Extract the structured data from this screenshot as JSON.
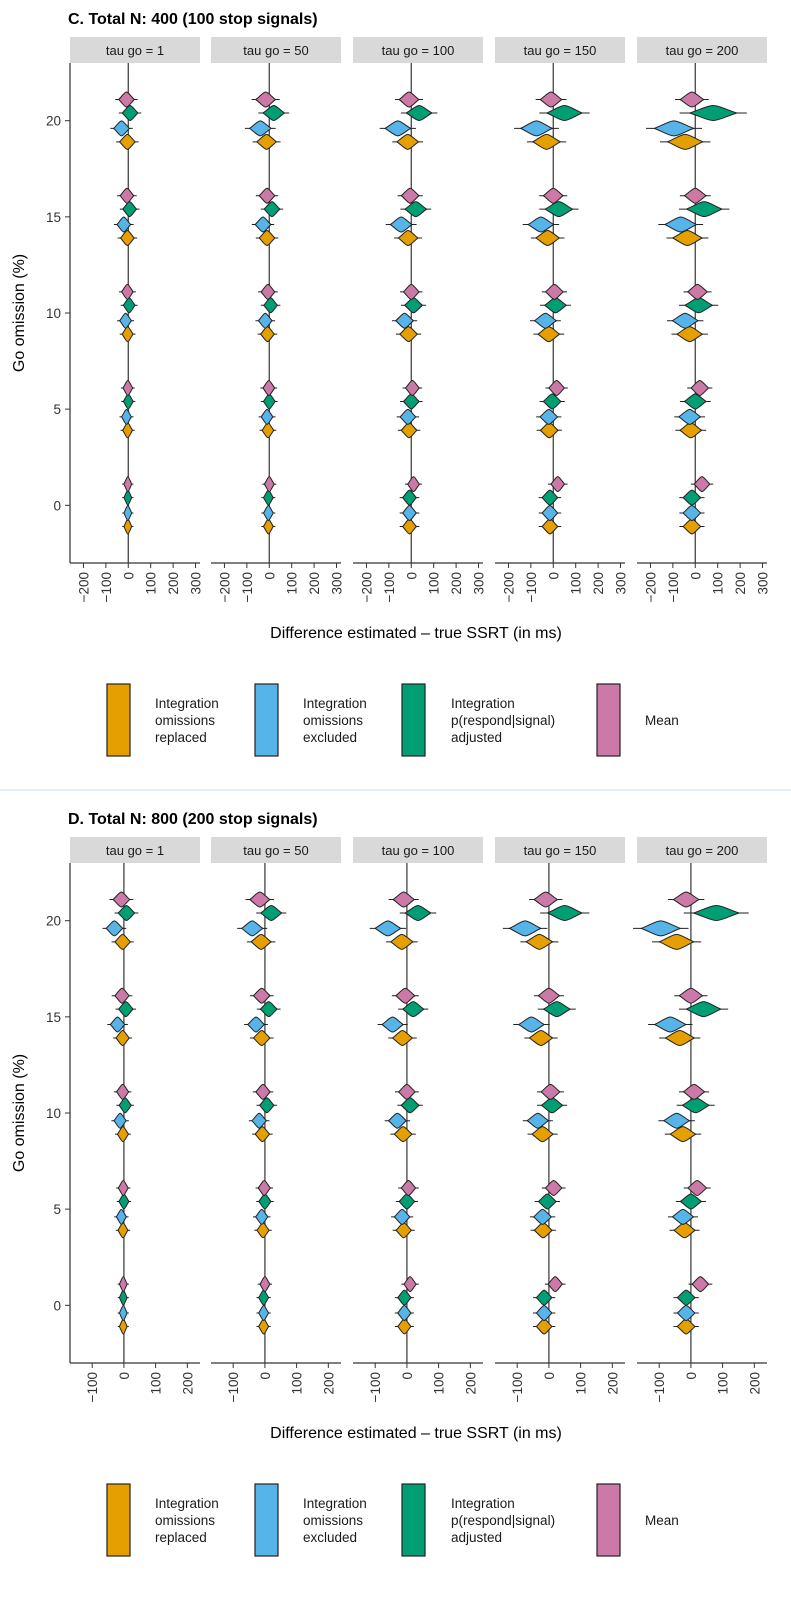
{
  "colors": {
    "replaced": "#E69F00",
    "excluded": "#56B4E9",
    "adjusted": "#009E73",
    "mean": "#CC79A7",
    "strip": "#d9d9d9"
  },
  "chart_data": [
    {
      "type": "violin",
      "title": "C. Total N: 400 (100 stop signals)",
      "xlabel": "Difference estimated – true SSRT (in ms)",
      "ylabel": "Go omission (%)",
      "facets": [
        "tau go = 1",
        "tau go = 50",
        "tau go = 100",
        "tau go = 150",
        "tau go = 200"
      ],
      "xlim": [
        -260,
        320
      ],
      "xticks": [
        -200,
        -100,
        0,
        100,
        200,
        300
      ],
      "xtick_labels": [
        "−200",
        "−100",
        "0",
        "100",
        "200",
        "300"
      ],
      "ylim": [
        -3,
        23
      ],
      "yticks": [
        0,
        5,
        10,
        15,
        20
      ],
      "ytick_labels": [
        "0",
        "5",
        "10",
        "15",
        "20"
      ],
      "go_omission_levels": [
        0,
        5,
        10,
        15,
        20
      ],
      "methods": [
        "Integration omissions replaced",
        "Integration omissions excluded",
        "Integration p(respond|signal) adjusted",
        "Mean"
      ],
      "method_order_bottom_to_top": [
        "replaced",
        "excluded",
        "adjusted",
        "mean"
      ],
      "series": [
        {
          "facet": "tau go = 1",
          "method": "replaced",
          "medians": [
            -2,
            -3,
            -3,
            -4,
            -4
          ],
          "spread": [
            20,
            25,
            28,
            35,
            40
          ]
        },
        {
          "facet": "tau go = 1",
          "method": "excluded",
          "medians": [
            -2,
            -8,
            -12,
            -20,
            -30
          ],
          "spread": [
            20,
            25,
            30,
            35,
            40
          ]
        },
        {
          "facet": "tau go = 1",
          "method": "adjusted",
          "medians": [
            -2,
            0,
            4,
            6,
            8
          ],
          "spread": [
            20,
            25,
            30,
            35,
            40
          ]
        },
        {
          "facet": "tau go = 1",
          "method": "mean",
          "medians": [
            -2,
            -2,
            -4,
            -6,
            -8
          ],
          "spread": [
            20,
            25,
            30,
            35,
            40
          ]
        },
        {
          "facet": "tau go = 50",
          "method": "replaced",
          "medians": [
            -4,
            -6,
            -8,
            -10,
            -12
          ],
          "spread": [
            25,
            30,
            35,
            40,
            50
          ]
        },
        {
          "facet": "tau go = 50",
          "method": "excluded",
          "medians": [
            -4,
            -10,
            -18,
            -28,
            -40
          ],
          "spread": [
            25,
            30,
            35,
            40,
            55
          ]
        },
        {
          "facet": "tau go = 50",
          "method": "adjusted",
          "medians": [
            -4,
            0,
            6,
            12,
            20
          ],
          "spread": [
            25,
            30,
            35,
            40,
            55
          ]
        },
        {
          "facet": "tau go = 50",
          "method": "mean",
          "medians": [
            0,
            -2,
            -6,
            -10,
            -16
          ],
          "spread": [
            25,
            30,
            35,
            40,
            50
          ]
        },
        {
          "facet": "tau go = 100",
          "method": "replaced",
          "medians": [
            -8,
            -10,
            -12,
            -14,
            -16
          ],
          "spread": [
            35,
            40,
            45,
            50,
            55
          ]
        },
        {
          "facet": "tau go = 100",
          "method": "excluded",
          "medians": [
            -8,
            -15,
            -30,
            -45,
            -60
          ],
          "spread": [
            35,
            40,
            45,
            55,
            65
          ]
        },
        {
          "facet": "tau go = 100",
          "method": "adjusted",
          "medians": [
            -8,
            0,
            10,
            20,
            35
          ],
          "spread": [
            35,
            40,
            45,
            55,
            65
          ]
        },
        {
          "facet": "tau go = 100",
          "method": "mean",
          "medians": [
            10,
            5,
            0,
            -5,
            -10
          ],
          "spread": [
            30,
            35,
            40,
            45,
            50
          ]
        },
        {
          "facet": "tau go = 150",
          "method": "replaced",
          "medians": [
            -15,
            -18,
            -20,
            -25,
            -30
          ],
          "spread": [
            40,
            45,
            55,
            60,
            70
          ]
        },
        {
          "facet": "tau go = 150",
          "method": "excluded",
          "medians": [
            -15,
            -20,
            -35,
            -55,
            -75
          ],
          "spread": [
            40,
            45,
            55,
            65,
            80
          ]
        },
        {
          "facet": "tau go = 150",
          "method": "adjusted",
          "medians": [
            -15,
            -5,
            10,
            25,
            50
          ],
          "spread": [
            40,
            45,
            55,
            70,
            90
          ]
        },
        {
          "facet": "tau go = 150",
          "method": "mean",
          "medians": [
            20,
            15,
            5,
            0,
            -10
          ],
          "spread": [
            35,
            40,
            45,
            50,
            55
          ]
        },
        {
          "facet": "tau go = 200",
          "method": "replaced",
          "medians": [
            -15,
            -20,
            -25,
            -35,
            -45
          ],
          "spread": [
            45,
            55,
            65,
            75,
            90
          ]
        },
        {
          "facet": "tau go = 200",
          "method": "excluded",
          "medians": [
            -15,
            -25,
            -45,
            -65,
            -95
          ],
          "spread": [
            45,
            55,
            65,
            80,
            100
          ]
        },
        {
          "facet": "tau go = 200",
          "method": "adjusted",
          "medians": [
            -15,
            0,
            15,
            40,
            80
          ],
          "spread": [
            45,
            55,
            70,
            90,
            120
          ]
        },
        {
          "facet": "tau go = 200",
          "method": "mean",
          "medians": [
            30,
            20,
            10,
            0,
            -15
          ],
          "spread": [
            40,
            45,
            50,
            55,
            60
          ]
        }
      ],
      "legend": [
        {
          "key": "replaced",
          "label": [
            "Integration",
            "omissions",
            "replaced"
          ]
        },
        {
          "key": "excluded",
          "label": [
            "Integration",
            "omissions",
            "excluded"
          ]
        },
        {
          "key": "adjusted",
          "label": [
            "Integration",
            "p(respond|signal)",
            "adjusted"
          ]
        },
        {
          "key": "mean",
          "label": [
            "Mean"
          ]
        }
      ],
      "legend_position": "bottom"
    },
    {
      "type": "violin",
      "title": "D. Total N: 800 (200 stop signals)",
      "xlabel": "Difference estimated – true SSRT (in ms)",
      "ylabel": "Go omission (%)",
      "facets": [
        "tau go = 1",
        "tau go = 50",
        "tau go = 100",
        "tau go = 150",
        "tau go = 200"
      ],
      "xlim": [
        -170,
        240
      ],
      "xticks": [
        -100,
        0,
        100,
        200
      ],
      "xtick_labels": [
        "−100",
        "0",
        "100",
        "200"
      ],
      "ylim": [
        -3,
        23
      ],
      "yticks": [
        0,
        5,
        10,
        15,
        20
      ],
      "ytick_labels": [
        "0",
        "5",
        "10",
        "15",
        "20"
      ],
      "go_omission_levels": [
        0,
        5,
        10,
        15,
        20
      ],
      "methods": [
        "Integration omissions replaced",
        "Integration omissions excluded",
        "Integration p(respond|signal) adjusted",
        "Mean"
      ],
      "method_order_bottom_to_top": [
        "replaced",
        "excluded",
        "adjusted",
        "mean"
      ],
      "series": [
        {
          "facet": "tau go = 1",
          "method": "replaced",
          "medians": [
            -2,
            -3,
            -3,
            -4,
            -4
          ],
          "spread": [
            14,
            18,
            20,
            24,
            28
          ]
        },
        {
          "facet": "tau go = 1",
          "method": "excluded",
          "medians": [
            -2,
            -8,
            -12,
            -20,
            -30
          ],
          "spread": [
            14,
            18,
            22,
            26,
            30
          ]
        },
        {
          "facet": "tau go = 1",
          "method": "adjusted",
          "medians": [
            -2,
            0,
            4,
            6,
            8
          ],
          "spread": [
            14,
            18,
            22,
            26,
            30
          ]
        },
        {
          "facet": "tau go = 1",
          "method": "mean",
          "medians": [
            -2,
            -2,
            -4,
            -6,
            -8
          ],
          "spread": [
            14,
            18,
            22,
            26,
            30
          ]
        },
        {
          "facet": "tau go = 50",
          "method": "replaced",
          "medians": [
            -4,
            -6,
            -8,
            -10,
            -12
          ],
          "spread": [
            18,
            22,
            26,
            30,
            36
          ]
        },
        {
          "facet": "tau go = 50",
          "method": "excluded",
          "medians": [
            -4,
            -10,
            -18,
            -28,
            -40
          ],
          "spread": [
            18,
            22,
            26,
            30,
            38
          ]
        },
        {
          "facet": "tau go = 50",
          "method": "adjusted",
          "medians": [
            -4,
            0,
            6,
            12,
            20
          ],
          "spread": [
            18,
            22,
            26,
            30,
            38
          ]
        },
        {
          "facet": "tau go = 50",
          "method": "mean",
          "medians": [
            0,
            -2,
            -6,
            -10,
            -16
          ],
          "spread": [
            18,
            22,
            26,
            30,
            36
          ]
        },
        {
          "facet": "tau go = 100",
          "method": "replaced",
          "medians": [
            -8,
            -10,
            -12,
            -14,
            -16
          ],
          "spread": [
            24,
            28,
            32,
            36,
            40
          ]
        },
        {
          "facet": "tau go = 100",
          "method": "excluded",
          "medians": [
            -8,
            -15,
            -30,
            -45,
            -60
          ],
          "spread": [
            24,
            28,
            32,
            38,
            46
          ]
        },
        {
          "facet": "tau go = 100",
          "method": "adjusted",
          "medians": [
            -8,
            0,
            10,
            20,
            35
          ],
          "spread": [
            24,
            28,
            32,
            38,
            46
          ]
        },
        {
          "facet": "tau go = 100",
          "method": "mean",
          "medians": [
            10,
            5,
            0,
            -5,
            -10
          ],
          "spread": [
            22,
            26,
            30,
            34,
            38
          ]
        },
        {
          "facet": "tau go = 150",
          "method": "replaced",
          "medians": [
            -15,
            -18,
            -20,
            -25,
            -30
          ],
          "spread": [
            28,
            32,
            38,
            42,
            48
          ]
        },
        {
          "facet": "tau go = 150",
          "method": "excluded",
          "medians": [
            -15,
            -20,
            -35,
            -55,
            -75
          ],
          "spread": [
            28,
            32,
            38,
            46,
            56
          ]
        },
        {
          "facet": "tau go = 150",
          "method": "adjusted",
          "medians": [
            -15,
            -5,
            10,
            25,
            50
          ],
          "spread": [
            28,
            32,
            38,
            48,
            62
          ]
        },
        {
          "facet": "tau go = 150",
          "method": "mean",
          "medians": [
            20,
            15,
            5,
            0,
            -10
          ],
          "spread": [
            26,
            30,
            34,
            38,
            42
          ]
        },
        {
          "facet": "tau go = 200",
          "method": "replaced",
          "medians": [
            -15,
            -20,
            -25,
            -35,
            -45
          ],
          "spread": [
            32,
            38,
            46,
            52,
            62
          ]
        },
        {
          "facet": "tau go = 200",
          "method": "excluded",
          "medians": [
            -15,
            -25,
            -45,
            -65,
            -95
          ],
          "spread": [
            32,
            38,
            46,
            56,
            70
          ]
        },
        {
          "facet": "tau go = 200",
          "method": "adjusted",
          "medians": [
            -15,
            0,
            15,
            40,
            80
          ],
          "spread": [
            32,
            38,
            48,
            62,
            82
          ]
        },
        {
          "facet": "tau go = 200",
          "method": "mean",
          "medians": [
            30,
            20,
            10,
            0,
            -15
          ],
          "spread": [
            30,
            34,
            38,
            42,
            46
          ]
        }
      ],
      "legend": [
        {
          "key": "replaced",
          "label": [
            "Integration",
            "omissions",
            "replaced"
          ]
        },
        {
          "key": "excluded",
          "label": [
            "Integration",
            "omissions",
            "excluded"
          ]
        },
        {
          "key": "adjusted",
          "label": [
            "Integration",
            "p(respond|signal)",
            "adjusted"
          ]
        },
        {
          "key": "mean",
          "label": [
            "Mean"
          ]
        }
      ],
      "legend_position": "bottom"
    }
  ]
}
